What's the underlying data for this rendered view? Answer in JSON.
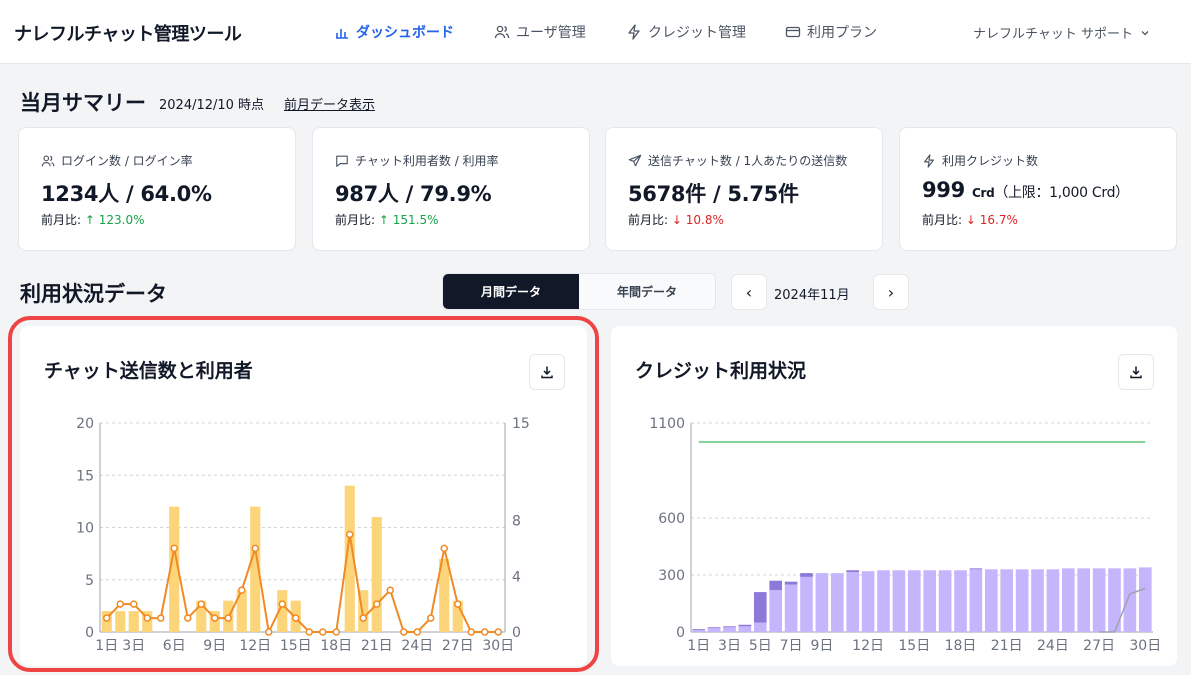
{
  "app": {
    "title": "ナレフルチャット管理ツール"
  },
  "nav": [
    {
      "label": "ダッシュボード",
      "icon": "bar-chart-icon",
      "active": true
    },
    {
      "label": "ユーザ管理",
      "icon": "users-icon",
      "active": false
    },
    {
      "label": "クレジット管理",
      "icon": "lightning-icon",
      "active": false
    },
    {
      "label": "利用プラン",
      "icon": "credit-card-icon",
      "active": false
    }
  ],
  "user_menu": {
    "label": "ナレフルチャット サポート"
  },
  "summary": {
    "title": "当月サマリー",
    "date": "2024/12/10 時点",
    "prev_link": "前月データ表示",
    "cards": [
      {
        "icon": "users-icon",
        "label": "ログイン数 / ログイン率",
        "value": "1234人 / 64.0%",
        "cmp_prefix": "前月比: ",
        "cmp_value": "↑ 123.0%",
        "trend": "up"
      },
      {
        "icon": "chat-icon",
        "label": "チャット利用者数 / 利用率",
        "value": "987人 / 79.9%",
        "cmp_prefix": "前月比: ",
        "cmp_value": "↑ 151.5%",
        "trend": "up"
      },
      {
        "icon": "send-icon",
        "label": "送信チャット数 / 1人あたりの送信数",
        "value": "5678件 / 5.75件",
        "cmp_prefix": "前月比: ",
        "cmp_value": "↓ 10.8%",
        "trend": "down"
      },
      {
        "icon": "lightning-icon",
        "label": "利用クレジット数",
        "value": "999",
        "value_unit": "Crd",
        "value_limit": "（上限：1,000 Crd）",
        "cmp_prefix": "前月比: ",
        "cmp_value": "↓ 16.7%",
        "trend": "down"
      }
    ]
  },
  "usage": {
    "title": "利用状況データ",
    "tabs": [
      "月間データ",
      "年間データ"
    ],
    "active_tab": 0,
    "period": "2024年11月",
    "prev_label": "‹",
    "next_label": "›"
  },
  "colors": {
    "accent": "#2563eb",
    "bar": "#fcd57a",
    "line": "#f08a24",
    "credit_light": "#c4b5fd",
    "credit_dark": "#8b7ad8",
    "limit": "#86d49a"
  },
  "chart_data": [
    {
      "type": "bar",
      "title": "チャット送信数と利用者",
      "x": [
        "1日",
        "2日",
        "3日",
        "4日",
        "5日",
        "6日",
        "7日",
        "8日",
        "9日",
        "10日",
        "11日",
        "12日",
        "13日",
        "14日",
        "15日",
        "16日",
        "17日",
        "18日",
        "19日",
        "20日",
        "21日",
        "22日",
        "23日",
        "24日",
        "25日",
        "26日",
        "27日",
        "28日",
        "29日",
        "30日"
      ],
      "x_tick_labels": [
        "1日",
        "3日",
        "6日",
        "9日",
        "12日",
        "15日",
        "18日",
        "21日",
        "24日",
        "27日",
        "30日"
      ],
      "x_tick_days": [
        1,
        3,
        6,
        9,
        12,
        15,
        18,
        21,
        24,
        27,
        30
      ],
      "ylim_left": [
        0,
        20
      ],
      "yticks_left": [
        0,
        5,
        10,
        15,
        20
      ],
      "ylim_right": [
        0,
        15
      ],
      "yticks_right": [
        0,
        4,
        8,
        15
      ],
      "grid": true,
      "series": [
        {
          "type": "bar",
          "axis": "left",
          "values": [
            2,
            2,
            2,
            2,
            0,
            12,
            0,
            3,
            2,
            3,
            4,
            12,
            0,
            4,
            3,
            0,
            0,
            0,
            14,
            4,
            11,
            0,
            0,
            0,
            0,
            7,
            3,
            0,
            0,
            0
          ]
        },
        {
          "type": "line",
          "axis": "right",
          "values": [
            1,
            2,
            2,
            1,
            1,
            6,
            1,
            2,
            1,
            1,
            3,
            6,
            0,
            2,
            1,
            0,
            0,
            0,
            7,
            1,
            2,
            3,
            0,
            0,
            1,
            6,
            2,
            0,
            0,
            0
          ]
        }
      ]
    },
    {
      "type": "bar",
      "title": "クレジット利用状況",
      "x": [
        "1日",
        "2日",
        "3日",
        "4日",
        "5日",
        "6日",
        "7日",
        "8日",
        "9日",
        "10日",
        "11日",
        "12日",
        "13日",
        "14日",
        "15日",
        "16日",
        "17日",
        "18日",
        "19日",
        "20日",
        "21日",
        "22日",
        "23日",
        "24日",
        "25日",
        "26日",
        "27日",
        "28日",
        "29日",
        "30日"
      ],
      "x_tick_labels": [
        "1日",
        "3日",
        "5日",
        "7日",
        "9日",
        "12日",
        "15日",
        "18日",
        "21日",
        "24日",
        "27日",
        "30日"
      ],
      "x_tick_days": [
        1,
        3,
        5,
        7,
        9,
        12,
        15,
        18,
        21,
        24,
        27,
        30
      ],
      "ylim": [
        0,
        1100
      ],
      "yticks": [
        0,
        300,
        600,
        1100
      ],
      "grid": true,
      "series": [
        {
          "type": "bar",
          "stacked": true,
          "values": [
            10,
            20,
            25,
            30,
            50,
            220,
            250,
            290,
            310,
            310,
            315,
            320,
            325,
            325,
            325,
            325,
            325,
            325,
            330,
            330,
            330,
            330,
            330,
            330,
            335,
            335,
            335,
            335,
            335,
            340
          ]
        },
        {
          "type": "bar",
          "stacked": true,
          "values": [
            5,
            5,
            5,
            8,
            160,
            50,
            15,
            20,
            0,
            0,
            10,
            0,
            0,
            0,
            0,
            0,
            0,
            0,
            5,
            0,
            0,
            0,
            0,
            0,
            0,
            0,
            0,
            0,
            0,
            0
          ]
        },
        {
          "type": "line",
          "values": [
            1000,
            1000,
            1000,
            1000,
            1000,
            1000,
            1000,
            1000,
            1000,
            1000,
            1000,
            1000,
            1000,
            1000,
            1000,
            1000,
            1000,
            1000,
            1000,
            1000,
            1000,
            1000,
            1000,
            1000,
            1000,
            1000,
            1000,
            1000,
            1000,
            1000
          ]
        },
        {
          "type": "line",
          "values": [
            0,
            0,
            0,
            0,
            0,
            0,
            0,
            0,
            0,
            0,
            0,
            0,
            0,
            0,
            0,
            0,
            0,
            0,
            0,
            0,
            0,
            0,
            0,
            0,
            0,
            0,
            0,
            0,
            200,
            230
          ]
        }
      ]
    }
  ]
}
